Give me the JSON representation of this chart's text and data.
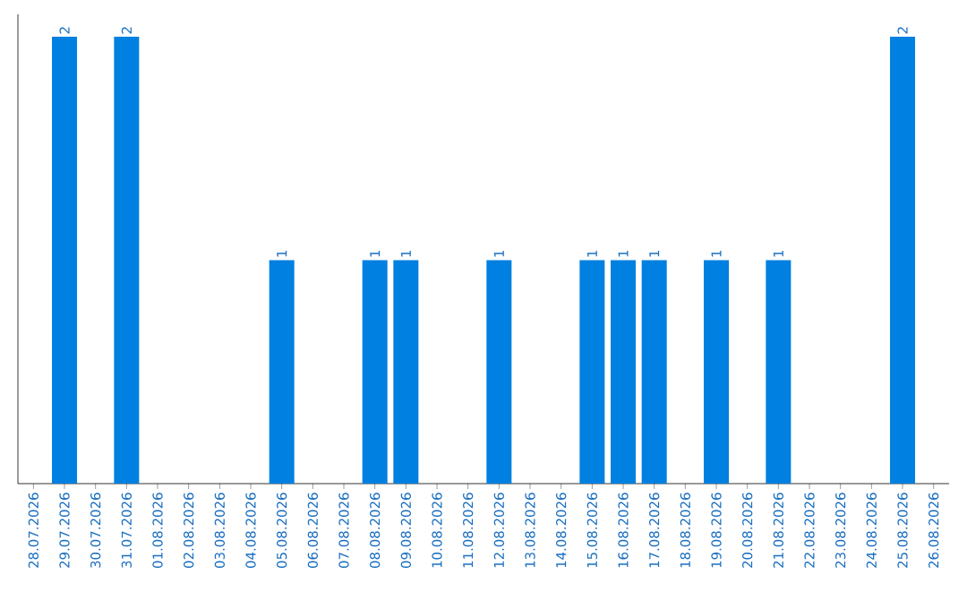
{
  "chart_data": {
    "type": "bar",
    "categories": [
      "28.07.2026",
      "29.07.2026",
      "30.07.2026",
      "31.07.2026",
      "01.08.2026",
      "02.08.2026",
      "03.08.2026",
      "04.08.2026",
      "05.08.2026",
      "06.08.2026",
      "07.08.2026",
      "08.08.2026",
      "09.08.2026",
      "10.08.2026",
      "11.08.2026",
      "12.08.2026",
      "13.08.2026",
      "14.08.2026",
      "15.08.2026",
      "16.08.2026",
      "17.08.2026",
      "18.08.2026",
      "19.08.2026",
      "20.08.2026",
      "21.08.2026",
      "22.08.2026",
      "23.08.2026",
      "24.08.2026",
      "25.08.2026",
      "26.08.2026"
    ],
    "values": [
      0,
      2,
      0,
      2,
      0,
      0,
      0,
      0,
      1,
      0,
      0,
      1,
      1,
      0,
      0,
      1,
      0,
      0,
      1,
      1,
      1,
      0,
      1,
      0,
      1,
      0,
      0,
      0,
      2,
      0
    ],
    "value_labels": [
      null,
      "2",
      null,
      "2",
      null,
      null,
      null,
      null,
      "1",
      null,
      null,
      "1",
      "1",
      null,
      null,
      "1",
      null,
      null,
      "1",
      "1",
      "1",
      null,
      "1",
      null,
      "1",
      null,
      null,
      null,
      "2",
      null
    ],
    "color": "#0080e0"
  }
}
